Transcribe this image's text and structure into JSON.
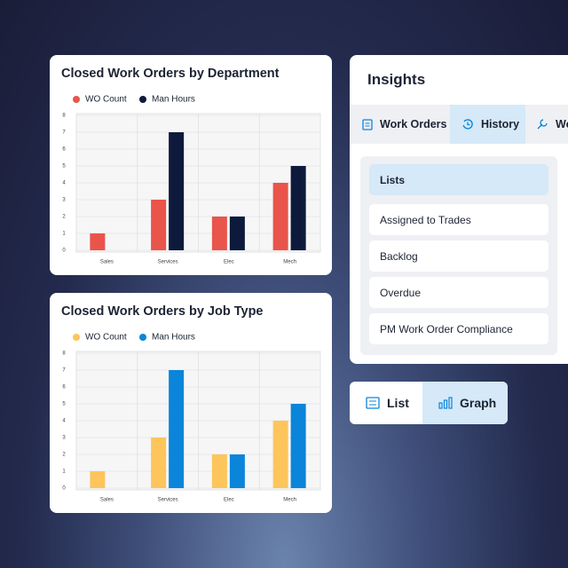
{
  "chart_data": [
    {
      "type": "bar",
      "title": "Closed Work Orders by Department",
      "categories": [
        "Sales",
        "Services",
        "Elec",
        "Mech"
      ],
      "series": [
        {
          "name": "WO Count",
          "color": "#e9544b",
          "values": [
            1,
            3,
            2,
            4
          ]
        },
        {
          "name": "Man Hours",
          "color": "#0d1a3c",
          "values": [
            0,
            7,
            2,
            5
          ]
        }
      ],
      "ylim": [
        0,
        8
      ],
      "yticks": [
        0,
        1,
        2,
        3,
        4,
        5,
        6,
        7,
        8
      ],
      "grid": true
    },
    {
      "type": "bar",
      "title": "Closed Work Orders by Job Type",
      "categories": [
        "Sales",
        "Services",
        "Elec",
        "Mech"
      ],
      "series": [
        {
          "name": "WO Count",
          "color": "#fdc55b",
          "values": [
            1,
            3,
            2,
            4
          ]
        },
        {
          "name": "Man Hours",
          "color": "#0b85d9",
          "values": [
            0,
            7,
            2,
            5
          ]
        }
      ],
      "ylim": [
        0,
        8
      ],
      "yticks": [
        0,
        1,
        2,
        3,
        4,
        5,
        6,
        7,
        8
      ],
      "grid": true
    }
  ],
  "insights": {
    "title": "Insights",
    "tabs": [
      "Work Orders",
      "History",
      "Wo"
    ],
    "items": [
      "Lists",
      "Assigned to Trades",
      "Backlog",
      "Overdue",
      "PM Work Order Compliance"
    ]
  },
  "view_toggle": [
    "List",
    "Graph"
  ]
}
